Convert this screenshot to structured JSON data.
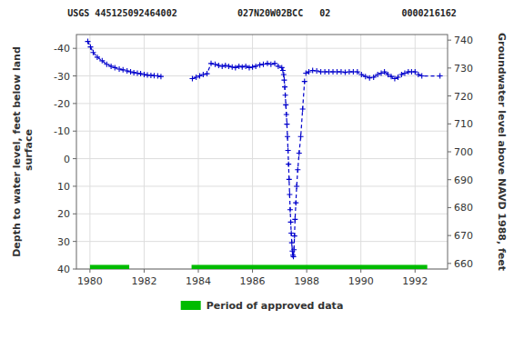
{
  "chart_data": {
    "type": "line",
    "title": "USGS 445125092464002           027N20W02BCC   02             0000216162",
    "ylabel": "Depth to water level, feet below land\n surface",
    "y2label": "Groundwater level above NAVD 1988, feet",
    "ylim": [
      40,
      -45
    ],
    "yticks": [
      40,
      30,
      20,
      10,
      0,
      -10,
      -20,
      -30,
      -40
    ],
    "y2lim": [
      658,
      742
    ],
    "y2ticks": [
      660,
      670,
      680,
      690,
      700,
      710,
      720,
      730,
      740
    ],
    "xlim": [
      1979.5,
      1993.2
    ],
    "xticks": [
      1980,
      1982,
      1984,
      1986,
      1988,
      1990,
      1992
    ],
    "grid": true,
    "legend": "bottom",
    "x": [
      1979.92,
      1980.02,
      1980.12,
      1980.27,
      1980.45,
      1980.62,
      1980.78,
      1980.92,
      1981.08,
      1981.22,
      1981.37,
      1981.5,
      1981.62,
      1981.75,
      1981.87,
      1982.0,
      1982.12,
      1982.25,
      1982.37,
      1982.5,
      1982.62,
      null,
      1983.78,
      1983.92,
      1984.05,
      1984.18,
      1984.32,
      1984.47,
      1984.62,
      1984.75,
      1984.88,
      1985.0,
      1985.12,
      1985.25,
      1985.37,
      1985.5,
      1985.62,
      1985.75,
      1985.88,
      1986.0,
      1986.12,
      1986.27,
      1986.4,
      1986.55,
      1986.68,
      1986.82,
      1986.95,
      null,
      1987.08,
      1987.12,
      1987.15,
      1987.17,
      1987.19,
      1987.21,
      1987.23,
      1987.25,
      1987.27,
      1987.29,
      1987.31,
      1987.33,
      1987.35,
      1987.37,
      1987.39,
      1987.41,
      1987.43,
      1987.45,
      1987.47,
      1987.49,
      1987.51,
      1987.53,
      1987.55,
      1987.57,
      1987.6,
      1987.63,
      1987.67,
      1987.72,
      1987.78,
      1987.85,
      1987.92,
      null,
      1987.97,
      1988.08,
      1988.22,
      1988.37,
      1988.52,
      1988.67,
      1988.82,
      1988.97,
      1989.12,
      1989.27,
      1989.42,
      1989.57,
      1989.72,
      1989.87,
      1990.02,
      1990.17,
      1990.32,
      1990.47,
      1990.62,
      1990.75,
      1990.87,
      1991.0,
      1991.12,
      1991.25,
      1991.37,
      1991.5,
      1991.62,
      1991.75,
      1991.87,
      1992.0,
      1992.12,
      1992.25,
      1992.92
    ],
    "series": [
      {
        "color": "#0000cc",
        "line_style": "dashed",
        "marker": "plus",
        "values": [
          -42.5,
          -40.5,
          -38.5,
          -36.8,
          -35.5,
          -34.2,
          -33.5,
          -33.0,
          -32.5,
          -32.2,
          -31.8,
          -31.5,
          -31.2,
          -31.0,
          -30.8,
          -30.5,
          -30.3,
          -30.2,
          -30.1,
          -30.0,
          -29.8,
          null,
          -29.0,
          -29.5,
          -30.0,
          -30.5,
          -30.8,
          -34.5,
          -34.2,
          -33.8,
          -33.5,
          -33.8,
          -33.5,
          -33.2,
          -33.0,
          -33.5,
          -33.2,
          -33.5,
          -33.0,
          -33.2,
          -33.5,
          -34.0,
          -34.2,
          -34.5,
          -34.2,
          -34.5,
          -33.5,
          null,
          -33.0,
          -32.0,
          -30.5,
          -28.5,
          -26.0,
          -23.0,
          -19.5,
          -16.0,
          -12.5,
          -8.0,
          -3.0,
          2.0,
          7.5,
          13.0,
          18.5,
          23.0,
          27.0,
          30.5,
          33.5,
          35.0,
          35.5,
          33.0,
          28.0,
          22.0,
          16.0,
          10.0,
          4.0,
          -2.0,
          -8.0,
          -18.0,
          -28.0,
          null,
          -31.0,
          -31.5,
          -32.0,
          -31.8,
          -31.5,
          -31.5,
          -31.5,
          -31.5,
          -31.5,
          -31.5,
          -31.3,
          -31.5,
          -31.5,
          -31.5,
          -30.5,
          -29.8,
          -29.3,
          -29.5,
          -30.5,
          -31.0,
          -31.5,
          -30.5,
          -29.8,
          -29.0,
          -29.5,
          -30.5,
          -31.0,
          -31.5,
          -31.5,
          -31.5,
          -30.5,
          -30.0,
          -30.0
        ]
      }
    ],
    "periods": {
      "name": "Period of approved data",
      "color": "#00bb00",
      "x": [
        [
          1980.0,
          1981.45
        ],
        [
          1983.75,
          1992.45
        ]
      ],
      "y": [
        38.5,
        40.0
      ]
    }
  }
}
